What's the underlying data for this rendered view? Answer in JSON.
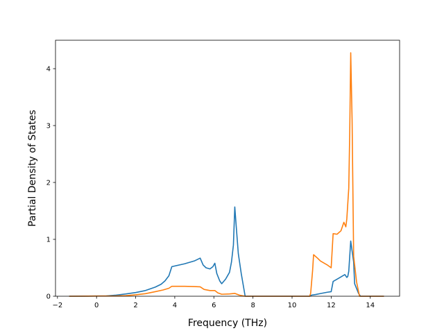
{
  "chart_data": {
    "type": "line",
    "title": "",
    "xlabel": "Frequency (THz)",
    "ylabel": "Partial Density of States",
    "xlim": [
      -2.1,
      15.5
    ],
    "ylim": [
      0,
      4.5
    ],
    "xticks": [
      -2,
      0,
      2,
      4,
      6,
      8,
      10,
      12,
      14
    ],
    "yticks": [
      0,
      1,
      2,
      3,
      4
    ],
    "xtick_labels": [
      "−2",
      "0",
      "2",
      "4",
      "6",
      "8",
      "10",
      "12",
      "14"
    ],
    "ytick_labels": [
      "0",
      "1",
      "2",
      "3",
      "4"
    ],
    "grid": false,
    "legend": "none",
    "series": [
      {
        "color": "#1f77b4",
        "points": [
          [
            -1.4,
            0
          ],
          [
            0.5,
            0.005
          ],
          [
            1.0,
            0.02
          ],
          [
            1.5,
            0.04
          ],
          [
            2.0,
            0.065
          ],
          [
            2.5,
            0.1
          ],
          [
            3.0,
            0.16
          ],
          [
            3.3,
            0.21
          ],
          [
            3.5,
            0.27
          ],
          [
            3.7,
            0.36
          ],
          [
            3.85,
            0.52
          ],
          [
            4.5,
            0.57
          ],
          [
            5.0,
            0.62
          ],
          [
            5.3,
            0.67
          ],
          [
            5.45,
            0.55
          ],
          [
            5.6,
            0.5
          ],
          [
            5.8,
            0.48
          ],
          [
            5.95,
            0.52
          ],
          [
            6.05,
            0.58
          ],
          [
            6.15,
            0.4
          ],
          [
            6.3,
            0.27
          ],
          [
            6.4,
            0.22
          ],
          [
            6.6,
            0.3
          ],
          [
            6.8,
            0.42
          ],
          [
            6.9,
            0.6
          ],
          [
            7.0,
            0.9
          ],
          [
            7.07,
            1.57
          ],
          [
            7.15,
            1.2
          ],
          [
            7.25,
            0.75
          ],
          [
            7.4,
            0.4
          ],
          [
            7.55,
            0.1
          ],
          [
            7.6,
            0
          ],
          [
            10.9,
            0
          ],
          [
            11.0,
            0.02
          ],
          [
            11.2,
            0.03
          ],
          [
            11.5,
            0.05
          ],
          [
            11.8,
            0.07
          ],
          [
            12.0,
            0.08
          ],
          [
            12.1,
            0.26
          ],
          [
            12.4,
            0.32
          ],
          [
            12.6,
            0.36
          ],
          [
            12.7,
            0.38
          ],
          [
            12.8,
            0.33
          ],
          [
            12.85,
            0.35
          ],
          [
            12.9,
            0.44
          ],
          [
            13.0,
            0.97
          ],
          [
            13.15,
            0.6
          ],
          [
            13.2,
            0.22
          ],
          [
            13.4,
            0.05
          ],
          [
            13.5,
            0
          ],
          [
            14.7,
            0
          ]
        ]
      },
      {
        "color": "#ff7f0e",
        "points": [
          [
            -1.4,
            0
          ],
          [
            1.0,
            0.005
          ],
          [
            1.5,
            0.01
          ],
          [
            2.0,
            0.025
          ],
          [
            2.5,
            0.045
          ],
          [
            3.0,
            0.08
          ],
          [
            3.4,
            0.11
          ],
          [
            3.7,
            0.14
          ],
          [
            3.85,
            0.175
          ],
          [
            4.5,
            0.175
          ],
          [
            5.0,
            0.17
          ],
          [
            5.3,
            0.165
          ],
          [
            5.5,
            0.12
          ],
          [
            5.8,
            0.1
          ],
          [
            6.05,
            0.1
          ],
          [
            6.2,
            0.06
          ],
          [
            6.4,
            0.035
          ],
          [
            6.8,
            0.04
          ],
          [
            7.07,
            0.05
          ],
          [
            7.3,
            0.02
          ],
          [
            7.5,
            0.005
          ],
          [
            7.6,
            0
          ],
          [
            10.9,
            0
          ],
          [
            10.95,
            0.05
          ],
          [
            11.05,
            0.45
          ],
          [
            11.1,
            0.73
          ],
          [
            11.3,
            0.67
          ],
          [
            11.45,
            0.62
          ],
          [
            11.8,
            0.55
          ],
          [
            12.0,
            0.5
          ],
          [
            12.1,
            1.1
          ],
          [
            12.3,
            1.09
          ],
          [
            12.5,
            1.15
          ],
          [
            12.65,
            1.3
          ],
          [
            12.75,
            1.22
          ],
          [
            12.8,
            1.36
          ],
          [
            12.9,
            1.9
          ],
          [
            12.95,
            2.9
          ],
          [
            13.0,
            4.28
          ],
          [
            13.07,
            3.1
          ],
          [
            13.15,
            0.7
          ],
          [
            13.3,
            0.25
          ],
          [
            13.45,
            0
          ],
          [
            14.7,
            0
          ]
        ]
      }
    ]
  }
}
